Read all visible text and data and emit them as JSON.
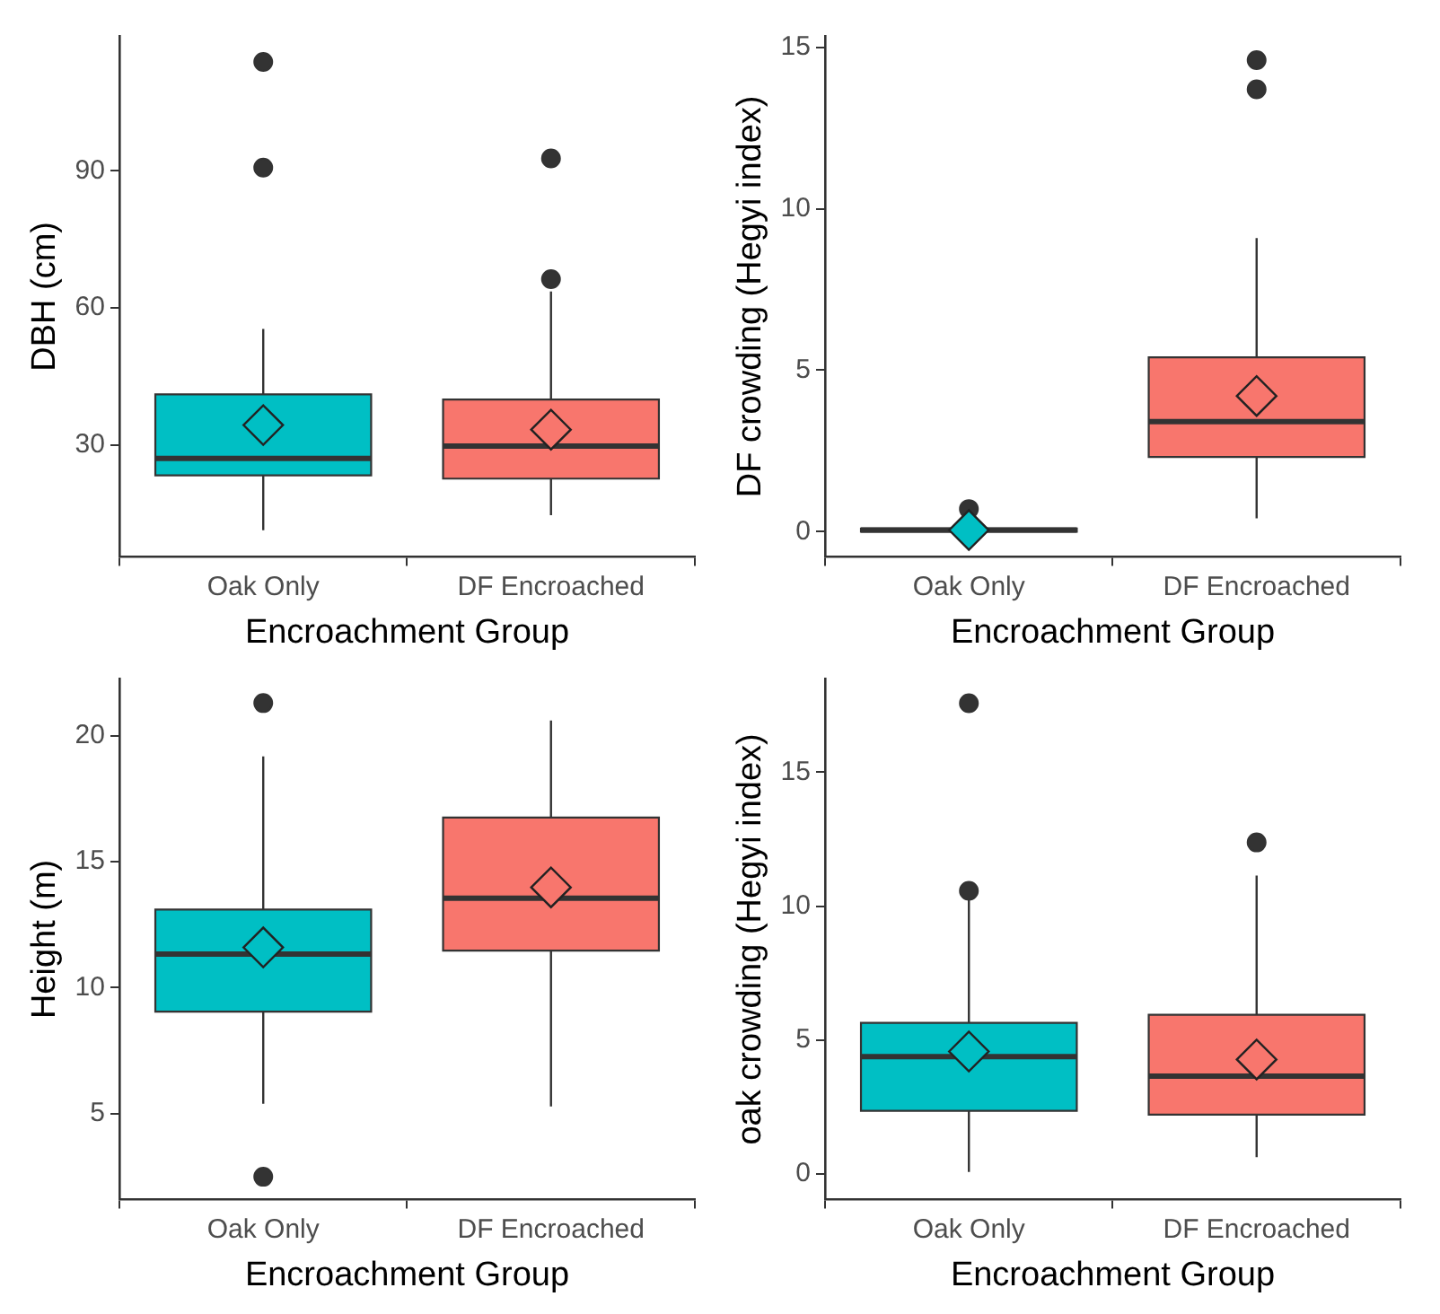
{
  "chart_data": [
    {
      "type": "box",
      "categories": [
        "Oak Only",
        "DF Encroached"
      ],
      "xlabel": "Encroachment Group",
      "ylabel": "DBH (cm)",
      "colors": [
        "#00bfc4",
        "#f8766d"
      ],
      "marker": "diamond",
      "ylim": [
        5.6,
        119.4
      ],
      "yticks": [
        30,
        60,
        90
      ],
      "boxes": [
        {
          "low": 11.4,
          "q1": 23.4,
          "median": 27.1,
          "q3": 41.1,
          "high": 55.4,
          "mean": 34.4,
          "outliers": [
            90.7,
            113.8
          ]
        },
        {
          "low": 14.7,
          "q1": 22.7,
          "median": 29.8,
          "q3": 40.0,
          "high": 63.6,
          "mean": 33.4,
          "outliers": [
            66.3,
            92.7
          ]
        }
      ]
    },
    {
      "type": "box",
      "categories": [
        "Oak Only",
        "DF Encroached"
      ],
      "xlabel": "Encroachment Group",
      "ylabel": "DF crowding (Hegyi index)",
      "colors": [
        "#00bfc4",
        "#f8766d"
      ],
      "marker": "diamond",
      "ylim": [
        -0.78,
        15.34
      ],
      "yticks": [
        0,
        5,
        10,
        15
      ],
      "boxes": [
        {
          "low": 0,
          "q1": 0,
          "median": 0.05,
          "q3": 0.1,
          "high": 0.1,
          "mean": 0.05,
          "outliers": [
            0.7
          ]
        },
        {
          "low": 0.41,
          "q1": 2.31,
          "median": 3.41,
          "q3": 5.4,
          "high": 9.09,
          "mean": 4.2,
          "outliers": [
            13.7,
            14.6
          ]
        }
      ]
    },
    {
      "type": "box",
      "categories": [
        "Oak Only",
        "DF Encroached"
      ],
      "xlabel": "Encroachment Group",
      "ylabel": "Height (m)",
      "colors": [
        "#00bfc4",
        "#f8766d"
      ],
      "marker": "diamond",
      "ylim": [
        1.6,
        22.25
      ],
      "yticks": [
        5,
        10,
        15,
        20
      ],
      "boxes": [
        {
          "low": 5.4,
          "q1": 9.05,
          "median": 11.33,
          "q3": 13.1,
          "high": 19.18,
          "mean": 11.6,
          "outliers": [
            2.5,
            21.29
          ]
        },
        {
          "low": 5.29,
          "q1": 11.47,
          "median": 13.55,
          "q3": 16.75,
          "high": 20.6,
          "mean": 13.98
        }
      ]
    },
    {
      "type": "box",
      "categories": [
        "Oak Only",
        "DF Encroached"
      ],
      "xlabel": "Encroachment Group",
      "ylabel": "oak crowding (Hegyi index)",
      "colors": [
        "#00bfc4",
        "#f8766d"
      ],
      "marker": "diamond",
      "ylim": [
        -0.96,
        18.49
      ],
      "yticks": [
        0,
        5,
        10,
        15
      ],
      "boxes": [
        {
          "low": 0.07,
          "q1": 2.35,
          "median": 4.38,
          "q3": 5.64,
          "high": 10.4,
          "mean": 4.57,
          "outliers": [
            10.57,
            17.58
          ]
        },
        {
          "low": 0.62,
          "q1": 2.21,
          "median": 3.65,
          "q3": 5.94,
          "high": 11.14,
          "mean": 4.27,
          "outliers": [
            12.38
          ]
        }
      ]
    }
  ]
}
